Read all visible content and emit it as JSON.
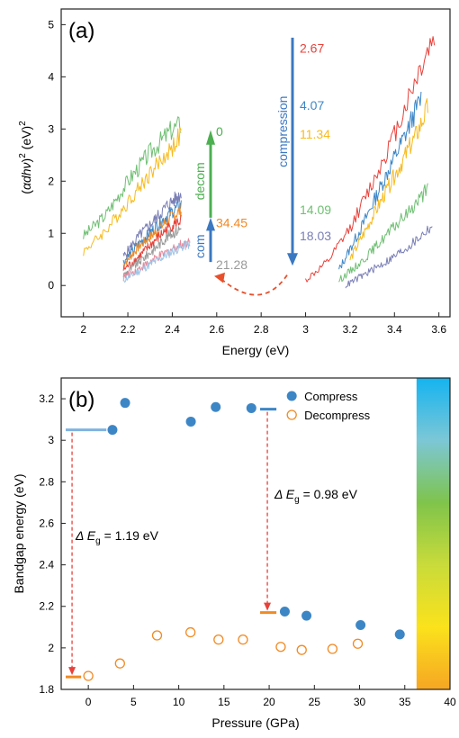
{
  "chart_data": [
    {
      "type": "line",
      "panel_label": "(a)",
      "xlabel": "Energy (eV)",
      "ylabel_parts": [
        "(",
        "α",
        "dh",
        "ν",
        ")",
        "2",
        " (eV)",
        "2"
      ],
      "xlim": [
        1.9,
        3.65
      ],
      "ylim": [
        -0.6,
        5.3
      ],
      "xticks": [
        2.0,
        2.2,
        2.4,
        2.6,
        2.8,
        3.0,
        3.2,
        3.4,
        3.6
      ],
      "yticks": [
        0,
        1,
        2,
        3,
        4,
        5
      ],
      "grid": false,
      "annotations": {
        "compression": {
          "label": "compression",
          "color": "#3b78c2",
          "pressures": [
            {
              "text": "2.67",
              "color": "#e8413a"
            },
            {
              "text": "4.07",
              "color": "#3d86c6"
            },
            {
              "text": "11.34",
              "color": "#f7bb1e"
            },
            {
              "text": "14.09",
              "color": "#6fbf73"
            },
            {
              "text": "18.03",
              "color": "#7a7fb5"
            }
          ]
        },
        "com": {
          "label": "com",
          "color": "#3b78c2"
        },
        "decom": {
          "label": "decom",
          "color": "#4caf50"
        },
        "left_pressures": [
          {
            "text": "0",
            "color": "#4caf50"
          },
          {
            "text": "34.45",
            "color": "#f08a24"
          },
          {
            "text": "21.28",
            "color": "#9a9a9a"
          }
        ],
        "arc_color": "#e8502c"
      },
      "series": [
        {
          "color": "#6fbf73",
          "x": [
            2.0,
            2.1,
            2.2,
            2.3,
            2.4,
            2.44
          ],
          "y": [
            0.95,
            1.35,
            2.0,
            2.55,
            3.0,
            3.1
          ]
        },
        {
          "color": "#f7bb1e",
          "x": [
            2.0,
            2.1,
            2.2,
            2.3,
            2.4,
            2.44
          ],
          "y": [
            0.65,
            1.05,
            1.6,
            2.15,
            2.65,
            2.9
          ]
        },
        {
          "color": "#7a7fb5",
          "x": [
            2.18,
            2.25,
            2.32,
            2.38,
            2.44
          ],
          "y": [
            0.55,
            0.95,
            1.25,
            1.55,
            1.75
          ]
        },
        {
          "color": "#3d86c6",
          "x": [
            2.18,
            2.25,
            2.32,
            2.38,
            2.44
          ],
          "y": [
            0.45,
            0.8,
            1.1,
            1.35,
            1.55
          ]
        },
        {
          "color": "#f08a24",
          "x": [
            2.18,
            2.25,
            2.32,
            2.38,
            2.44
          ],
          "y": [
            0.4,
            0.75,
            1.0,
            1.25,
            1.45
          ]
        },
        {
          "color": "#e8413a",
          "x": [
            2.18,
            2.25,
            2.32,
            2.38,
            2.44
          ],
          "y": [
            0.3,
            0.55,
            0.85,
            1.1,
            1.25
          ]
        },
        {
          "color": "#9a9a9a",
          "x": [
            2.18,
            2.25,
            2.32,
            2.38,
            2.44
          ],
          "y": [
            0.2,
            0.45,
            0.7,
            0.95,
            1.1
          ]
        },
        {
          "color": "#e8879a",
          "x": [
            2.18,
            2.26,
            2.34,
            2.42,
            2.48
          ],
          "y": [
            0.15,
            0.35,
            0.55,
            0.75,
            0.85
          ]
        },
        {
          "color": "#9fc6e8",
          "x": [
            2.18,
            2.26,
            2.34,
            2.42,
            2.48
          ],
          "y": [
            0.1,
            0.3,
            0.5,
            0.7,
            0.8
          ]
        },
        {
          "color": "#e8413a",
          "x": [
            3.0,
            3.1,
            3.2,
            3.3,
            3.4,
            3.5,
            3.58
          ],
          "y": [
            0.1,
            0.45,
            1.1,
            1.95,
            2.9,
            4.0,
            4.8
          ]
        },
        {
          "color": "#3d86c6",
          "x": [
            3.15,
            3.25,
            3.35,
            3.45,
            3.52
          ],
          "y": [
            0.3,
            1.1,
            2.0,
            2.9,
            3.6
          ]
        },
        {
          "color": "#f7bb1e",
          "x": [
            3.2,
            3.3,
            3.4,
            3.5,
            3.55
          ],
          "y": [
            0.5,
            1.3,
            2.1,
            2.9,
            3.4
          ]
        },
        {
          "color": "#6fbf73",
          "x": [
            3.15,
            3.25,
            3.35,
            3.45,
            3.55
          ],
          "y": [
            0.1,
            0.45,
            0.9,
            1.35,
            1.85
          ]
        },
        {
          "color": "#7a7fb5",
          "x": [
            3.18,
            3.28,
            3.38,
            3.48,
            3.57
          ],
          "y": [
            0.0,
            0.25,
            0.5,
            0.8,
            1.15
          ]
        }
      ]
    },
    {
      "type": "scatter",
      "panel_label": "(b)",
      "xlabel": "Pressure (GPa)",
      "ylabel": "Bandgap energy (eV)",
      "xlim": [
        -3,
        40
      ],
      "ylim": [
        1.8,
        3.3
      ],
      "xticks": [
        0,
        5,
        10,
        15,
        20,
        25,
        30,
        35,
        40
      ],
      "yticks": [
        1.8,
        2.0,
        2.2,
        2.4,
        2.6,
        2.8,
        3.0,
        3.2
      ],
      "grid": false,
      "legend_position": "top-right",
      "series": [
        {
          "name": "Compress",
          "marker": "filled-circle",
          "color": "#3d86c6",
          "x": [
            2.67,
            4.07,
            11.34,
            14.09,
            18.03,
            21.73,
            24.13,
            30.11,
            34.45
          ],
          "y": [
            3.05,
            3.18,
            3.09,
            3.16,
            3.155,
            2.175,
            2.155,
            2.11,
            2.065
          ]
        },
        {
          "name": "Decompress",
          "marker": "open-circle",
          "color": "#f08a24",
          "x": [
            0,
            3.5,
            7.6,
            11.3,
            14.4,
            17.1,
            21.28,
            23.6,
            27.0,
            29.8
          ],
          "y": [
            1.865,
            1.925,
            2.06,
            2.075,
            2.04,
            2.04,
            2.005,
            1.99,
            1.995,
            2.02
          ]
        }
      ],
      "gap_annotations": [
        {
          "label": "Δ E",
          "sub": "g",
          "value": " = 1.19 eV",
          "x": -1.8,
          "from": 3.05,
          "to": 1.86
        },
        {
          "label": "Δ E",
          "sub": "g",
          "value": " = 0.98 eV",
          "x": 19.8,
          "from": 3.15,
          "to": 2.17
        }
      ],
      "level_marks": [
        {
          "y": 3.05,
          "x0": -2.5,
          "x1": 2.0,
          "color": "#7fb3e0"
        },
        {
          "y": 1.86,
          "x0": -2.5,
          "x1": -0.8,
          "color": "#f08a24"
        },
        {
          "y": 3.15,
          "x0": 19.0,
          "x1": 20.8,
          "color": "#3d86c6"
        },
        {
          "y": 2.17,
          "x0": 19.0,
          "x1": 20.8,
          "color": "#f08a24"
        }
      ],
      "colorbar": {
        "x0": 36.3,
        "x1": 40,
        "colors": [
          "#14b4f0",
          "#7cc7d6",
          "#7fc44b",
          "#c9db3a",
          "#fbe21c",
          "#f6a623"
        ]
      },
      "arrow_color": "#e8413a"
    }
  ]
}
